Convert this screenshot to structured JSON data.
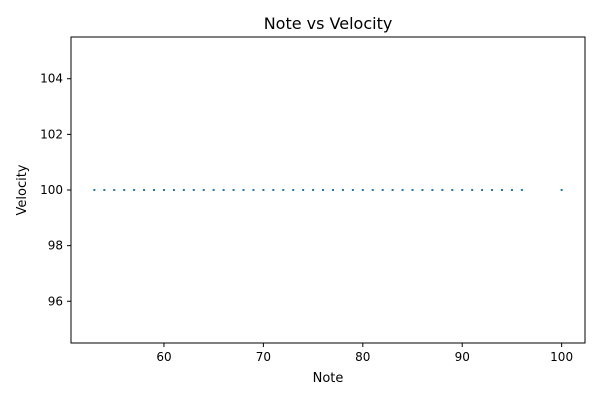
{
  "chart_data": {
    "type": "scatter",
    "title": "Note vs Velocity",
    "xlabel": "Note",
    "ylabel": "Velocity",
    "xlim": [
      50.65,
      102.35
    ],
    "ylim": [
      94.5,
      105.5
    ],
    "xticks": [
      60,
      70,
      80,
      90,
      100
    ],
    "yticks": [
      96,
      98,
      100,
      102,
      104
    ],
    "grid": false,
    "marker_color": "#1f77b4",
    "series": [
      {
        "x": [
          53,
          54,
          55,
          56,
          57,
          58,
          59,
          60,
          61,
          62,
          63,
          64,
          65,
          66,
          67,
          68,
          69,
          70,
          71,
          72,
          73,
          74,
          75,
          76,
          77,
          78,
          79,
          80,
          81,
          82,
          83,
          84,
          85,
          86,
          87,
          88,
          89,
          90,
          91,
          92,
          93,
          94,
          95,
          96,
          100
        ],
        "y": [
          100,
          100,
          100,
          100,
          100,
          100,
          100,
          100,
          100,
          100,
          100,
          100,
          100,
          100,
          100,
          100,
          100,
          100,
          100,
          100,
          100,
          100,
          100,
          100,
          100,
          100,
          100,
          100,
          100,
          100,
          100,
          100,
          100,
          100,
          100,
          100,
          100,
          100,
          100,
          100,
          100,
          100,
          100,
          100,
          100
        ]
      }
    ]
  }
}
